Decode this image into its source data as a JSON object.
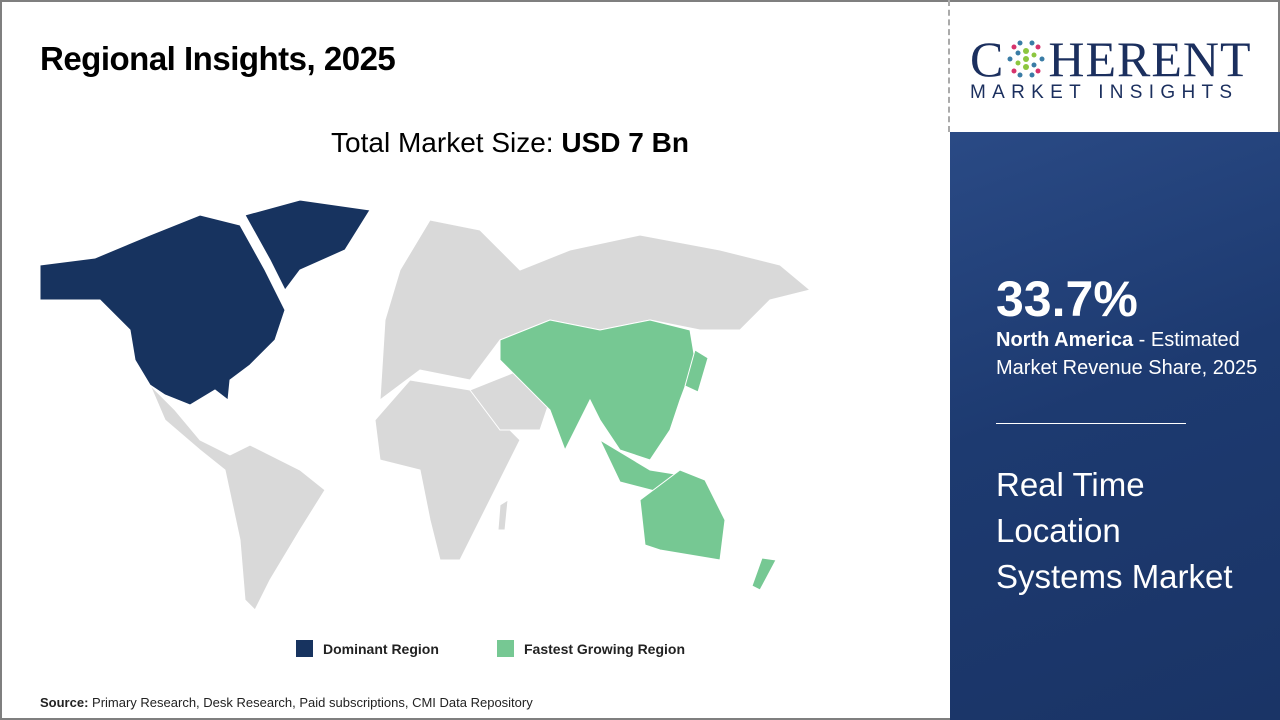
{
  "title": "Regional Insights, 2025",
  "total_market": {
    "label": "Total Market Size: ",
    "value": "USD 7 Bn"
  },
  "legend": [
    {
      "label": "Dominant Region",
      "color": "#17335f"
    },
    {
      "label": "Fastest Growing Region",
      "color": "#76c893"
    }
  ],
  "map": {
    "dominant_region": "North America",
    "fastest_growing_region": "Asia Pacific",
    "other_color": "#d9d9d9"
  },
  "source": {
    "label": "Source:",
    "text": " Primary Research, Desk Research, Paid subscriptions, CMI Data Repository"
  },
  "logo": {
    "main_left": "C",
    "main_right": "HERENT",
    "sub": "MARKET INSIGHTS"
  },
  "panel": {
    "percent": "33.7%",
    "region": "North America",
    "desc": " - Estimated Market Revenue Share, 2025",
    "market_name": "Real Time Location Systems Market"
  }
}
